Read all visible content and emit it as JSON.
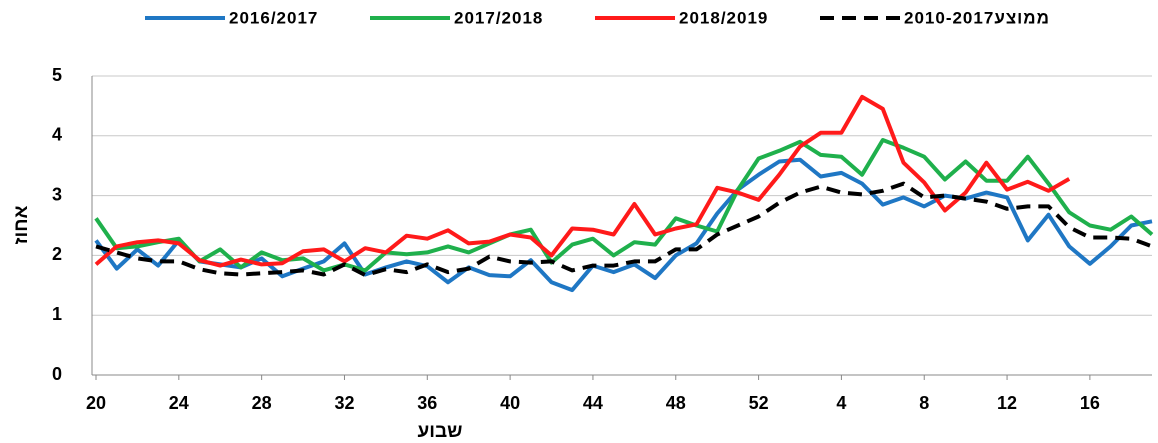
{
  "chart_data": {
    "type": "line",
    "xlabel": "שבוע",
    "ylabel": "אחוז",
    "categories": [
      "20",
      null,
      null,
      null,
      "24",
      null,
      null,
      null,
      "28",
      null,
      null,
      null,
      "32",
      null,
      null,
      null,
      "36",
      null,
      null,
      null,
      "40",
      null,
      null,
      null,
      "44",
      null,
      null,
      null,
      "48",
      null,
      null,
      null,
      "52",
      null,
      null,
      null,
      "4",
      null,
      null,
      null,
      "8",
      null,
      null,
      null,
      "12",
      null,
      null,
      null,
      "16",
      null,
      null,
      null
    ],
    "series": [
      {
        "name": "2016/2017",
        "color": "#1f77c4",
        "style": "solid",
        "values": [
          2.25,
          1.78,
          2.1,
          1.83,
          2.25,
          1.9,
          1.85,
          1.8,
          1.95,
          1.65,
          1.78,
          1.9,
          2.2,
          1.68,
          1.8,
          1.9,
          1.82,
          1.55,
          1.8,
          1.67,
          1.65,
          1.92,
          1.55,
          1.42,
          1.83,
          1.72,
          1.85,
          1.62,
          2.0,
          2.2,
          2.7,
          3.1,
          3.35,
          3.57,
          3.6,
          3.32,
          3.38,
          3.2,
          2.85,
          2.97,
          2.82,
          3.0,
          2.95,
          3.05,
          2.97,
          2.25,
          2.68,
          2.15,
          1.86,
          2.15,
          2.5,
          2.57
        ]
      },
      {
        "name": "2017/2018",
        "color": "#1fb04c",
        "style": "solid",
        "values": [
          2.62,
          2.12,
          2.15,
          2.22,
          2.28,
          1.9,
          2.1,
          1.8,
          2.05,
          1.92,
          1.95,
          1.75,
          1.85,
          1.75,
          2.05,
          2.02,
          2.05,
          2.15,
          2.05,
          2.2,
          2.35,
          2.43,
          1.88,
          2.18,
          2.28,
          2.0,
          2.22,
          2.18,
          2.62,
          2.5,
          2.4,
          3.1,
          3.62,
          3.75,
          3.9,
          3.68,
          3.65,
          3.35,
          3.93,
          3.8,
          3.65,
          3.27,
          3.57,
          3.25,
          3.25,
          3.65,
          3.2,
          2.72,
          2.5,
          2.43,
          2.65,
          2.35
        ]
      },
      {
        "name": "2018/2019",
        "color": "#ff1a1a",
        "style": "solid",
        "values": [
          1.85,
          2.15,
          2.22,
          2.25,
          2.2,
          1.92,
          1.83,
          1.93,
          1.85,
          1.87,
          2.07,
          2.1,
          1.9,
          2.12,
          2.05,
          2.33,
          2.28,
          2.42,
          2.2,
          2.23,
          2.35,
          2.3,
          2.0,
          2.45,
          2.43,
          2.35,
          2.86,
          2.35,
          2.45,
          2.52,
          3.13,
          3.05,
          2.93,
          3.35,
          3.82,
          4.05,
          4.05,
          4.65,
          4.45,
          3.55,
          3.22,
          2.75,
          3.05,
          3.55,
          3.1,
          3.23,
          3.08,
          3.28,
          null,
          null,
          null,
          null
        ]
      },
      {
        "name": "ממוצע2010-2017",
        "color": "#000000",
        "style": "dashed",
        "values": [
          2.15,
          2.05,
          1.95,
          1.9,
          1.9,
          1.77,
          1.7,
          1.68,
          1.7,
          1.72,
          1.75,
          1.68,
          1.85,
          1.67,
          1.77,
          1.72,
          1.85,
          1.72,
          1.78,
          1.98,
          1.9,
          1.88,
          1.9,
          1.75,
          1.83,
          1.83,
          1.9,
          1.9,
          2.1,
          2.1,
          2.35,
          2.5,
          2.65,
          2.88,
          3.05,
          3.15,
          3.05,
          3.02,
          3.08,
          3.2,
          2.97,
          3.0,
          2.95,
          2.9,
          2.78,
          2.82,
          2.82,
          2.47,
          2.3,
          2.3,
          2.28,
          2.15
        ]
      }
    ],
    "ylim": [
      0,
      5
    ],
    "yticks": [
      0,
      1,
      2,
      3,
      4,
      5
    ],
    "grid": true,
    "legend": "top"
  }
}
